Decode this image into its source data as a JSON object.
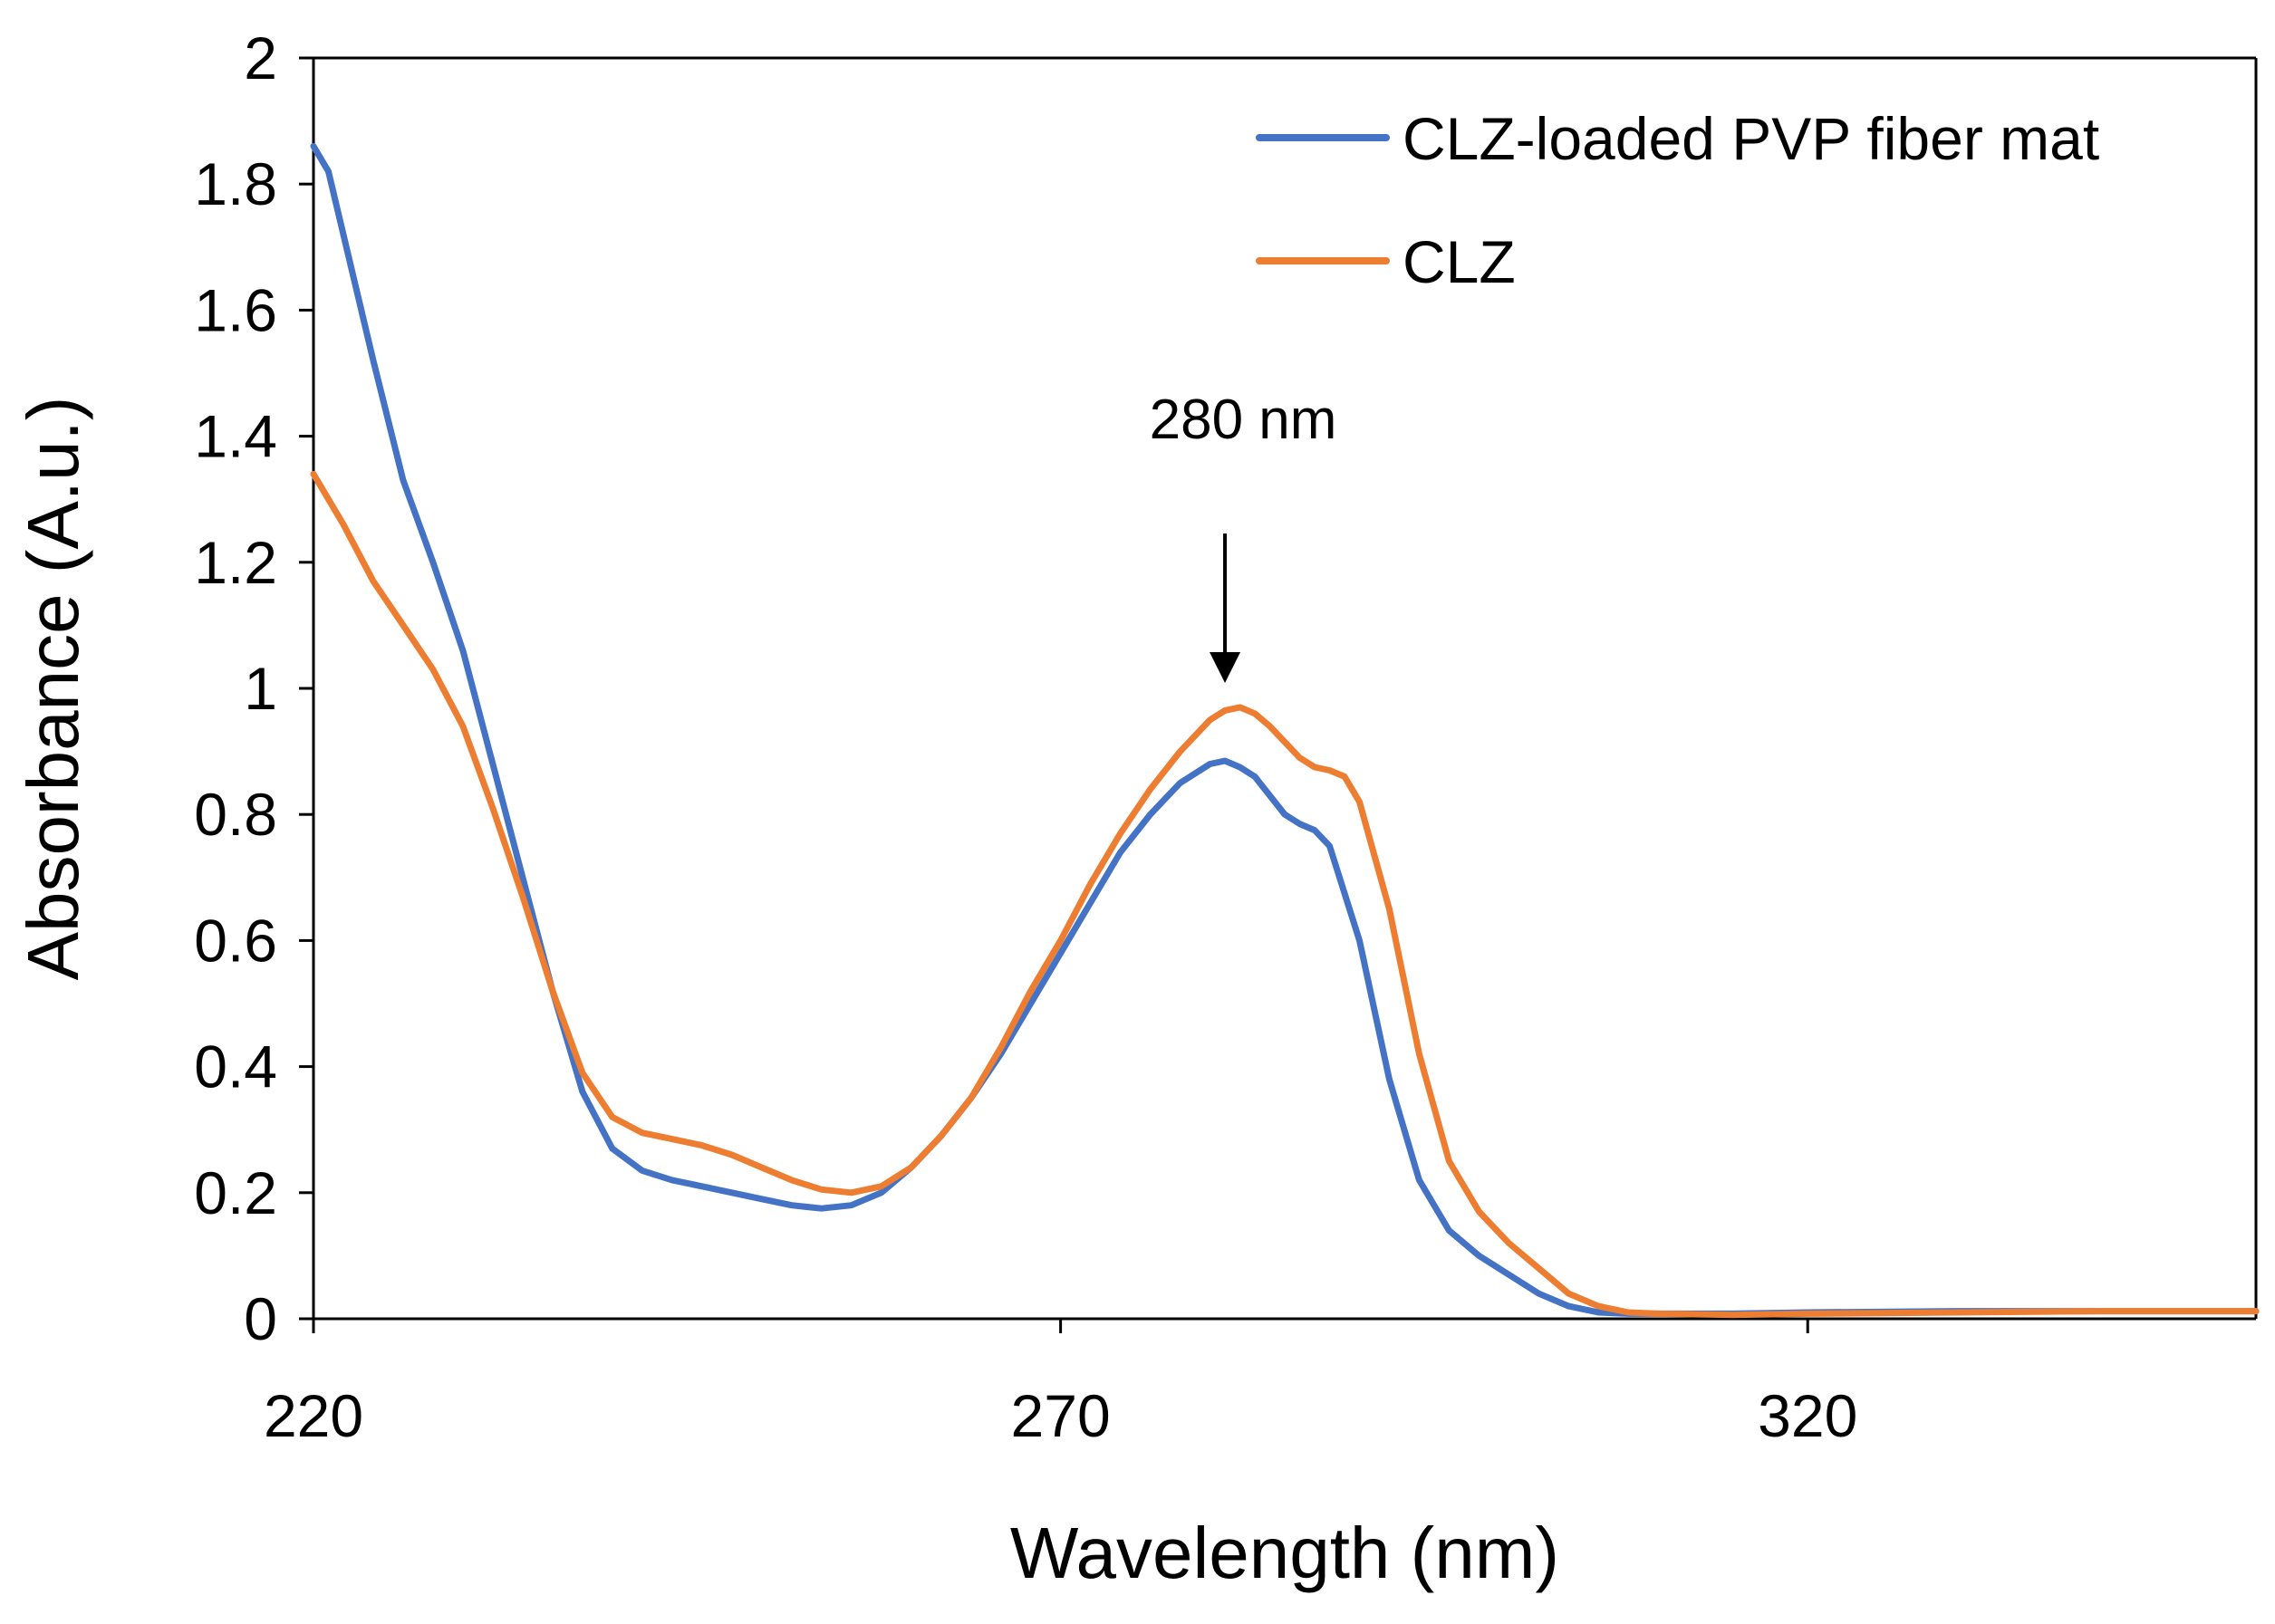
{
  "chart_data": {
    "type": "line",
    "title": "",
    "xlabel": "Wavelength (nm)",
    "ylabel": "Absorbance (A.u.)",
    "xlim": [
      220,
      350
    ],
    "ylim": [
      0,
      2
    ],
    "xticks": [
      220,
      270,
      320
    ],
    "xtick_labels": [
      "220",
      "270",
      "320"
    ],
    "yticks": [
      0,
      0.2,
      0.4,
      0.6,
      0.8,
      1,
      1.2,
      1.4,
      1.6,
      1.8,
      2
    ],
    "ytick_labels": [
      "0",
      "0.2",
      "0.4",
      "0.6",
      "0.8",
      "1",
      "1.2",
      "1.4",
      "1.6",
      "1.8",
      "2"
    ],
    "grid": false,
    "legend_position": "top-right",
    "series": [
      {
        "name": "CLZ-loaded PVP fiber mat",
        "color": "#4472C4",
        "x": [
          220,
          221,
          222,
          224,
          226,
          228,
          230,
          232,
          234,
          236,
          238,
          240,
          242,
          244,
          246,
          248,
          250,
          252,
          254,
          256,
          258,
          260,
          262,
          264,
          266,
          268,
          270,
          272,
          274,
          276,
          278,
          280,
          281,
          282,
          283,
          284,
          285,
          286,
          287,
          288,
          290,
          292,
          294,
          296,
          298,
          300,
          302,
          304,
          306,
          308,
          310,
          315,
          320,
          330,
          340,
          350
        ],
        "y": [
          1.86,
          1.82,
          1.72,
          1.52,
          1.33,
          1.2,
          1.06,
          0.88,
          0.7,
          0.52,
          0.36,
          0.27,
          0.235,
          0.22,
          0.21,
          0.2,
          0.19,
          0.18,
          0.175,
          0.18,
          0.2,
          0.24,
          0.29,
          0.35,
          0.42,
          0.5,
          0.58,
          0.66,
          0.74,
          0.8,
          0.85,
          0.88,
          0.885,
          0.875,
          0.86,
          0.83,
          0.8,
          0.785,
          0.775,
          0.75,
          0.6,
          0.38,
          0.22,
          0.14,
          0.1,
          0.07,
          0.04,
          0.02,
          0.01,
          0.008,
          0.008,
          0.008,
          0.01,
          0.012,
          0.012,
          0.012
        ]
      },
      {
        "name": "CLZ",
        "color": "#ED7D31",
        "x": [
          220,
          222,
          224,
          226,
          228,
          230,
          232,
          234,
          236,
          238,
          240,
          242,
          244,
          246,
          248,
          250,
          252,
          254,
          256,
          258,
          260,
          262,
          264,
          266,
          268,
          270,
          272,
          274,
          276,
          278,
          280,
          281,
          282,
          283,
          284,
          285,
          286,
          287,
          288,
          289,
          290,
          292,
          294,
          296,
          298,
          300,
          302,
          304,
          306,
          308,
          310,
          315,
          320,
          330,
          340,
          350
        ],
        "y": [
          1.34,
          1.26,
          1.17,
          1.1,
          1.03,
          0.94,
          0.81,
          0.67,
          0.52,
          0.39,
          0.32,
          0.295,
          0.285,
          0.275,
          0.26,
          0.24,
          0.22,
          0.205,
          0.2,
          0.21,
          0.24,
          0.29,
          0.35,
          0.43,
          0.52,
          0.6,
          0.69,
          0.77,
          0.84,
          0.9,
          0.95,
          0.965,
          0.97,
          0.96,
          0.94,
          0.915,
          0.89,
          0.875,
          0.87,
          0.86,
          0.82,
          0.65,
          0.42,
          0.25,
          0.17,
          0.12,
          0.08,
          0.04,
          0.02,
          0.01,
          0.008,
          0.006,
          0.008,
          0.01,
          0.012,
          0.012
        ]
      }
    ],
    "annotations": [
      {
        "text": "280 nm",
        "x": 281,
        "arrow_from_y": 1.26,
        "arrow_to_y": 1.0
      }
    ]
  }
}
